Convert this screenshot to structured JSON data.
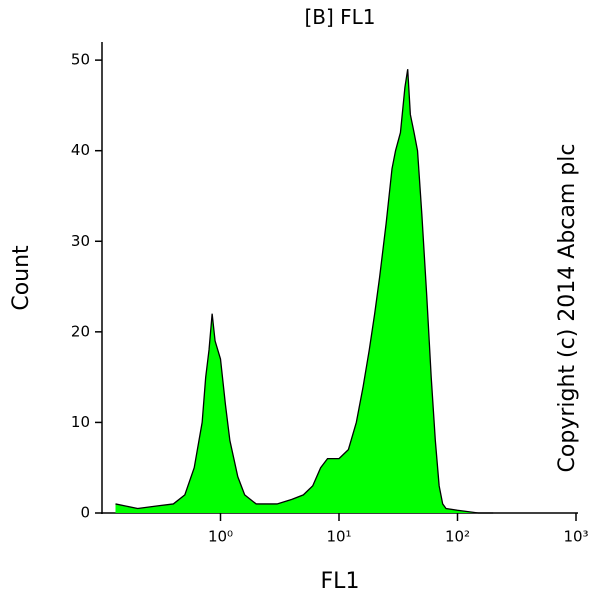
{
  "chart_data": {
    "type": "area",
    "title": "[B] FL1",
    "xlabel": "FL1",
    "ylabel": "Count",
    "annotation": "Copyright (c) 2014 Abcam plc",
    "x": [
      0.13,
      0.2,
      0.3,
      0.4,
      0.5,
      0.6,
      0.7,
      0.75,
      0.8,
      0.85,
      0.9,
      1.0,
      1.1,
      1.2,
      1.4,
      1.6,
      2,
      3,
      4,
      5,
      6,
      7,
      8,
      9,
      10,
      12,
      14,
      16,
      18,
      20,
      22,
      25,
      28,
      30,
      33,
      36,
      38,
      40,
      43,
      46,
      50,
      55,
      60,
      65,
      70,
      75,
      80,
      100,
      150,
      200
    ],
    "series": [
      {
        "name": "FL1",
        "color": "#00ff00",
        "values": [
          1,
          0.5,
          0.8,
          1,
          2,
          5,
          10,
          15,
          18,
          22,
          19,
          17,
          12,
          8,
          4,
          2,
          1,
          1,
          1.5,
          2,
          3,
          5,
          6,
          6,
          6,
          7,
          10,
          14,
          18,
          22,
          26,
          32,
          38,
          40,
          42,
          47,
          49,
          44,
          42,
          40,
          33,
          24,
          15,
          8,
          3,
          1,
          0.5,
          0.3,
          0,
          0
        ]
      }
    ],
    "xscale": "log",
    "xlim": [
      0.1,
      1000
    ],
    "xticks": [
      {
        "value": 1,
        "label": "10⁰"
      },
      {
        "value": 10,
        "label": "10¹"
      },
      {
        "value": 100,
        "label": "10²"
      },
      {
        "value": 1000,
        "label": "10³"
      }
    ],
    "ylim": [
      0,
      52
    ],
    "yticks": [
      0,
      10,
      20,
      30,
      40,
      50
    ]
  }
}
